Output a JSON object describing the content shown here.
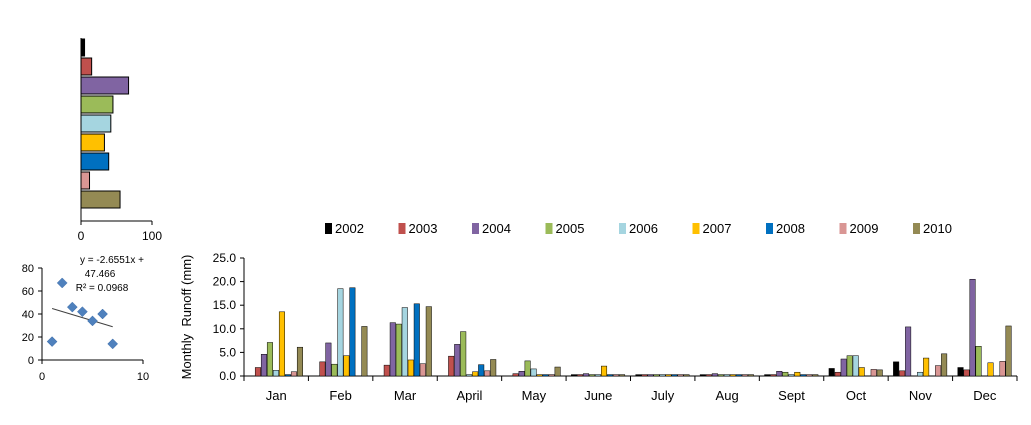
{
  "chart_data": [
    {
      "type": "bar",
      "orientation": "horizontal",
      "values": [
        5,
        15,
        67,
        45,
        42,
        33,
        39,
        12,
        55
      ],
      "colors": [
        "#000000",
        "#c0504d",
        "#8064a2",
        "#9bbb59",
        "#a5d5e0",
        "#ffc000",
        "#0070c0",
        "#d99694",
        "#948a54"
      ],
      "xlim": [
        0,
        100
      ],
      "xticks": [
        "0",
        "100"
      ],
      "grid": false,
      "legend": "none"
    },
    {
      "type": "scatter",
      "x": [
        1,
        2,
        3,
        4,
        5,
        6,
        7
      ],
      "y": [
        16,
        67,
        46,
        42,
        34,
        40,
        14
      ],
      "xlim": [
        0,
        10
      ],
      "ylim": [
        0,
        80
      ],
      "xticks": [
        "0",
        "10"
      ],
      "yticks": [
        "0",
        "20",
        "40",
        "60",
        "80"
      ],
      "trendline": {
        "slope": -2.6551,
        "intercept": 47.466
      },
      "annotation_lines": [
        "y = -2.6551x +",
        "47.466",
        "R² = 0.0968"
      ],
      "marker_color": "#4f81bd",
      "grid": false
    },
    {
      "type": "bar",
      "categories": [
        "Jan",
        "Feb",
        "Mar",
        "April",
        "May",
        "June",
        "July",
        "Aug",
        "Sept",
        "Oct",
        "Nov",
        "Dec"
      ],
      "series": [
        {
          "name": "2002",
          "color": "#000000",
          "values": [
            0.0,
            0.0,
            0.0,
            0.0,
            0.0,
            0.3,
            0.3,
            0.3,
            0.3,
            1.6,
            3.0,
            1.8
          ]
        },
        {
          "name": "2003",
          "color": "#c0504d",
          "values": [
            1.8,
            3.0,
            2.3,
            4.2,
            0.5,
            0.3,
            0.3,
            0.3,
            0.3,
            0.8,
            1.1,
            1.3
          ]
        },
        {
          "name": "2004",
          "color": "#8064a2",
          "values": [
            4.6,
            7.0,
            11.3,
            6.7,
            1.0,
            0.5,
            0.3,
            0.5,
            1.0,
            3.6,
            10.4,
            20.5
          ]
        },
        {
          "name": "2005",
          "color": "#9bbb59",
          "values": [
            7.1,
            2.5,
            11.0,
            9.4,
            3.2,
            0.3,
            0.3,
            0.3,
            0.8,
            4.3,
            0.0,
            6.3
          ]
        },
        {
          "name": "2006",
          "color": "#a5d5e0",
          "values": [
            1.2,
            18.5,
            14.5,
            0.3,
            1.5,
            0.3,
            0.3,
            0.3,
            0.3,
            4.3,
            0.8,
            0.0
          ]
        },
        {
          "name": "2007",
          "color": "#ffc000",
          "values": [
            13.6,
            4.3,
            3.4,
            0.9,
            0.3,
            2.1,
            0.3,
            0.3,
            0.8,
            1.8,
            3.8,
            2.8
          ]
        },
        {
          "name": "2008",
          "color": "#0070c0",
          "values": [
            0.3,
            18.7,
            15.3,
            2.4,
            0.3,
            0.3,
            0.3,
            0.3,
            0.3,
            0.0,
            0.0,
            0.0
          ]
        },
        {
          "name": "2009",
          "color": "#d99694",
          "values": [
            0.9,
            0.0,
            2.6,
            1.1,
            0.3,
            0.3,
            0.3,
            0.3,
            0.3,
            1.4,
            2.2,
            3.1
          ]
        },
        {
          "name": "2010",
          "color": "#948a54",
          "values": [
            6.1,
            10.5,
            14.7,
            3.5,
            1.9,
            0.3,
            0.3,
            0.3,
            0.3,
            1.3,
            4.7,
            10.6
          ]
        }
      ],
      "xlabel": "",
      "ylabel": "Monthly  Runoff (mm)",
      "ylim": [
        0,
        25
      ],
      "yticks": [
        "0.0",
        "5.0",
        "10.0",
        "15.0",
        "20.0",
        "25.0"
      ],
      "grid": false,
      "legend": "top"
    }
  ]
}
